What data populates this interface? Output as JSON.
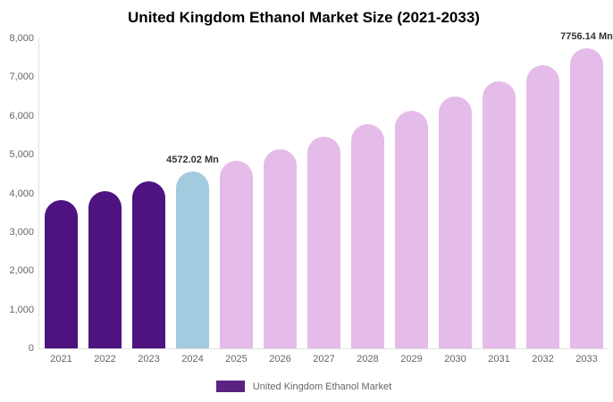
{
  "title": "United Kingdom Ethanol Market Size (2021-2033)",
  "legend": {
    "label": "United Kingdom Ethanol Market"
  },
  "colors": {
    "historical": "#4e1380",
    "highlight": "#a3cbe0",
    "forecast": "#e5bbe9",
    "legend_swatch": "#5b2183",
    "axis_line": "#e2e2e2",
    "tick_text": "#666666",
    "data_label_text": "#333333",
    "title_text": "#000000",
    "background": "#ffffff"
  },
  "chart_data": {
    "type": "bar",
    "title": "United Kingdom Ethanol Market Size (2021-2033)",
    "xlabel": "",
    "ylabel": "",
    "categories": [
      "2021",
      "2022",
      "2023",
      "2024",
      "2025",
      "2026",
      "2027",
      "2028",
      "2029",
      "2030",
      "2031",
      "2032",
      "2033"
    ],
    "values": [
      3832.7,
      4064.9,
      4311.2,
      4572.02,
      4849.0,
      5142.7,
      5454.3,
      5784.7,
      6135.2,
      6506.9,
      6901.1,
      7319.2,
      7756.14
    ],
    "series_name": "United Kingdom Ethanol Market",
    "units": "Mn",
    "ylim": [
      0,
      8000
    ],
    "ytick_step": 1000,
    "ytick_labels": [
      "0",
      "1,000",
      "2,000",
      "3,000",
      "4,000",
      "5,000",
      "6,000",
      "7,000",
      "8,000"
    ],
    "grid": false,
    "legend_position": "bottom",
    "bar_roles": [
      "historical",
      "historical",
      "historical",
      "highlight",
      "forecast",
      "forecast",
      "forecast",
      "forecast",
      "forecast",
      "forecast",
      "forecast",
      "forecast",
      "forecast"
    ],
    "data_labels": [
      {
        "index": 3,
        "text": "4572.02 Mn"
      },
      {
        "index": 12,
        "text": "7756.14 Mn"
      }
    ]
  }
}
